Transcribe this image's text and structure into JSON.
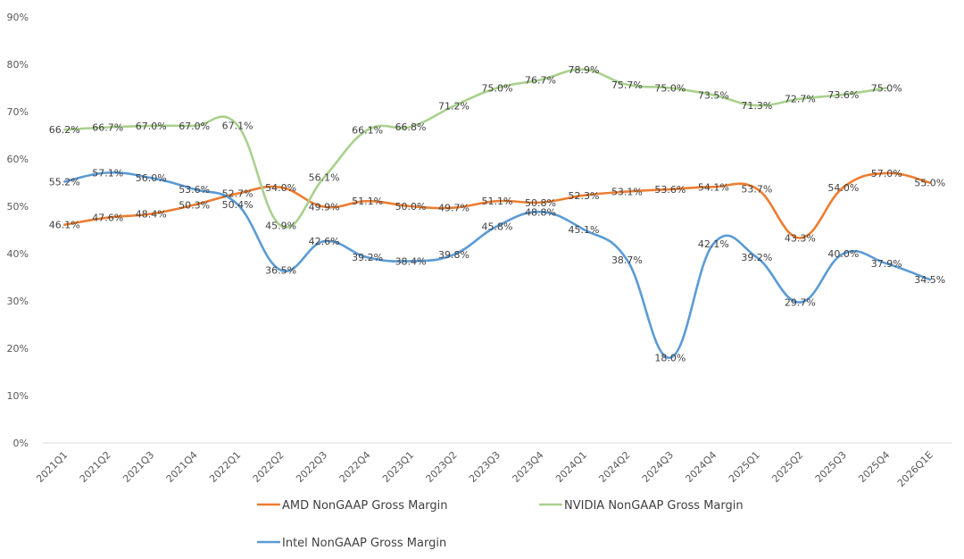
{
  "chart_data": {
    "type": "line",
    "title": "",
    "xlabel": "",
    "ylabel": "",
    "ylim": [
      0,
      90
    ],
    "yticks": [
      "0%",
      "10%",
      "20%",
      "30%",
      "40%",
      "50%",
      "60%",
      "70%",
      "80%",
      "90%"
    ],
    "grid": false,
    "legend_position": "bottom",
    "categories": [
      "2021Q1",
      "2021Q2",
      "2021Q3",
      "2021Q4",
      "2022Q1",
      "2022Q2",
      "2022Q3",
      "2022Q4",
      "2023Q1",
      "2023Q2",
      "2023Q3",
      "2023Q4",
      "2024Q1",
      "2024Q2",
      "2024Q3",
      "2024Q4",
      "2025Q1",
      "2025Q2",
      "2025Q3",
      "2025Q4",
      "2026Q1E"
    ],
    "series": [
      {
        "name": "AMD NonGAAP Gross Margin",
        "color": "#ED7D31",
        "values": [
          46.1,
          47.6,
          48.4,
          50.3,
          52.7,
          54.0,
          49.9,
          51.1,
          50.0,
          49.7,
          51.1,
          50.8,
          52.3,
          53.1,
          53.6,
          54.1,
          53.7,
          43.3,
          54.0,
          57.0,
          55.0
        ],
        "labels": [
          "46.1%",
          "47.6%",
          "48.4%",
          "50.3%",
          "52.7%",
          "54.0%",
          "49.9%",
          "51.1%",
          "50.0%",
          "49.7%",
          "51.1%",
          "50.8%",
          "52.3%",
          "53.1%",
          "53.6%",
          "54.1%",
          "53.7%",
          "43.3%",
          "54.0%",
          "57.0%",
          "55.0%"
        ]
      },
      {
        "name": "NVIDIA NonGAAP Gross Margin",
        "color": "#A9D18E",
        "values": [
          66.2,
          66.7,
          67.0,
          67.0,
          67.1,
          45.9,
          56.1,
          66.1,
          66.8,
          71.2,
          75.0,
          76.7,
          78.9,
          75.7,
          75.0,
          73.5,
          71.3,
          72.7,
          73.6,
          75.0,
          null
        ],
        "labels": [
          "66.2%",
          "66.7%",
          "67.0%",
          "67.0%",
          "67.1%",
          "45.9%",
          "56.1%",
          "66.1%",
          "66.8%",
          "71.2%",
          "75.0%",
          "76.7%",
          "78.9%",
          "75.7%",
          "75.0%",
          "73.5%",
          "71.3%",
          "72.7%",
          "73.6%",
          "75.0%",
          null
        ]
      },
      {
        "name": "Intel NonGAAP Gross Margin",
        "color": "#5B9BD5",
        "values": [
          55.2,
          57.1,
          56.0,
          53.6,
          50.4,
          36.5,
          42.6,
          39.2,
          38.4,
          39.8,
          45.8,
          48.8,
          45.1,
          38.7,
          18.0,
          42.1,
          39.2,
          29.7,
          40.0,
          37.9,
          34.5
        ],
        "labels": [
          "55.2%",
          "57.1%",
          "56.0%",
          "53.6%",
          "50.4%",
          "36.5%",
          "42.6%",
          "39.2%",
          "38.4%",
          "39.8%",
          "45.8%",
          "48.8%",
          "45.1%",
          "38.7%",
          "18.0%",
          "42.1%",
          "39.2%",
          "29.7%",
          "40.0%",
          "37.9%",
          "34.5%"
        ]
      }
    ]
  }
}
